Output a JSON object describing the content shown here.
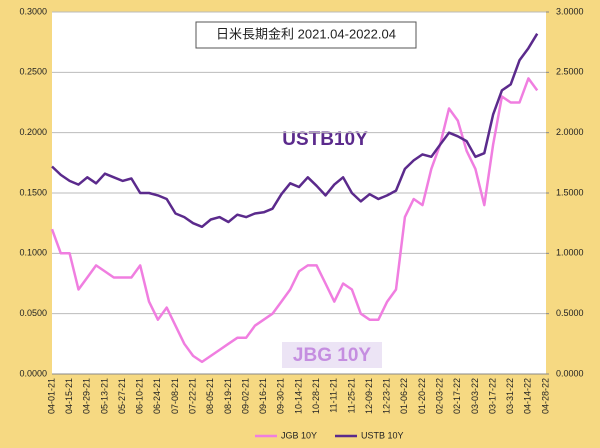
{
  "chart_data": {
    "type": "line",
    "title": "日米長期金利 2021.04-2022.04",
    "annotations": [
      "USTB10Y",
      "JBG 10Y"
    ],
    "categories": [
      "04-01-21",
      null,
      "04-15-21",
      null,
      "04-29-21",
      null,
      "05-13-21",
      null,
      "05-27-21",
      null,
      "06-10-21",
      null,
      "06-24-21",
      null,
      "07-08-21",
      null,
      "07-22-21",
      null,
      "08-05-21",
      null,
      "08-19-21",
      null,
      "09-02-21",
      null,
      "09-16-21",
      null,
      "09-30-21",
      null,
      "10-14-21",
      null,
      "10-28-21",
      null,
      "11-11-21",
      null,
      "11-25-21",
      null,
      "12-09-21",
      null,
      "12-23-21",
      null,
      "01-06-22",
      null,
      "01-20-22",
      null,
      "02-03-22",
      null,
      "02-17-22",
      null,
      "03-03-22",
      null,
      "03-17-22",
      null,
      "03-31-22",
      null,
      "04-14-22",
      null,
      "04-28-22"
    ],
    "series": [
      {
        "name": "JGB 10Y",
        "color": "#f07ee0",
        "values": [
          0.12,
          0.1,
          0.1,
          0.07,
          0.08,
          0.09,
          0.085,
          0.08,
          0.08,
          0.08,
          0.09,
          0.06,
          0.045,
          0.055,
          0.04,
          0.025,
          0.015,
          0.01,
          0.015,
          0.02,
          0.025,
          0.03,
          0.03,
          0.04,
          0.045,
          0.05,
          0.06,
          0.07,
          0.085,
          0.09,
          0.09,
          0.075,
          0.06,
          0.075,
          0.07,
          0.05,
          0.045,
          0.045,
          0.06,
          0.07,
          0.13,
          0.145,
          0.14,
          0.17,
          0.19,
          0.22,
          0.21,
          0.185,
          0.17,
          0.14,
          0.19,
          0.23,
          0.225,
          0.225,
          0.245,
          0.235,
          null
        ]
      },
      {
        "name": "USTB 10Y",
        "color": "#5b2a8c",
        "axis": "y2",
        "values": [
          1.72,
          1.65,
          1.6,
          1.57,
          1.63,
          1.58,
          1.66,
          1.63,
          1.6,
          1.62,
          1.5,
          1.5,
          1.48,
          1.45,
          1.33,
          1.3,
          1.25,
          1.22,
          1.28,
          1.3,
          1.26,
          1.32,
          1.3,
          1.33,
          1.34,
          1.37,
          1.49,
          1.58,
          1.55,
          1.63,
          1.56,
          1.48,
          1.57,
          1.63,
          1.5,
          1.43,
          1.49,
          1.45,
          1.48,
          1.52,
          1.7,
          1.77,
          1.82,
          1.8,
          1.9,
          2.0,
          1.97,
          1.93,
          1.8,
          1.83,
          2.15,
          2.35,
          2.4,
          2.6,
          2.7,
          2.82,
          null
        ]
      }
    ],
    "ylim": [
      0,
      0.3
    ],
    "yticks": [
      {
        "value": 0,
        "label": "0.0000"
      },
      {
        "value": 0.05,
        "label": "0.0500"
      },
      {
        "value": 0.1,
        "label": "0.1000"
      },
      {
        "value": 0.15,
        "label": "0.1500"
      },
      {
        "value": 0.2,
        "label": "0.2000"
      },
      {
        "value": 0.25,
        "label": "0.2500"
      },
      {
        "value": 0.3,
        "label": "0.3000"
      }
    ],
    "y2lim": [
      0,
      3
    ],
    "y2ticks": [
      {
        "value": 0,
        "label": "0.0000"
      },
      {
        "value": 0.5,
        "label": "0.5000"
      },
      {
        "value": 1,
        "label": "1.0000"
      },
      {
        "value": 1.5,
        "label": "1.5000"
      },
      {
        "value": 2,
        "label": "2.0000"
      },
      {
        "value": 2.5,
        "label": "2.5000"
      },
      {
        "value": 3,
        "label": "3.0000"
      }
    ],
    "grid": true,
    "legend": "bottom"
  }
}
